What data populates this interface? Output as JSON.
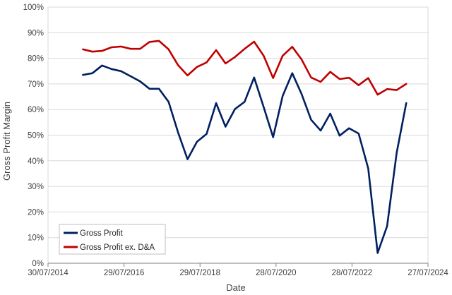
{
  "chart_data": {
    "type": "line",
    "title": "",
    "xlabel": "Date",
    "ylabel": "Gross Profit Margin",
    "xlim": [
      "2014-07-30",
      "2024-07-27"
    ],
    "ylim": [
      0,
      100
    ],
    "grid": "horizontal",
    "legend_position": "bottom-left",
    "x_tick_labels": [
      "30/07/2014",
      "29/07/2016",
      "29/07/2018",
      "28/07/2020",
      "28/07/2022",
      "27/07/2024"
    ],
    "y_tick_labels": [
      "0%",
      "10%",
      "20%",
      "30%",
      "40%",
      "50%",
      "60%",
      "70%",
      "80%",
      "90%",
      "100%"
    ],
    "x": [
      "2015-06-30",
      "2015-09-30",
      "2015-12-31",
      "2016-03-31",
      "2016-06-30",
      "2016-09-30",
      "2016-12-31",
      "2017-03-31",
      "2017-06-30",
      "2017-09-30",
      "2017-12-31",
      "2018-03-31",
      "2018-06-30",
      "2018-09-30",
      "2018-12-31",
      "2019-03-31",
      "2019-06-30",
      "2019-09-30",
      "2019-12-31",
      "2020-03-31",
      "2020-06-30",
      "2020-09-30",
      "2020-12-31",
      "2021-03-31",
      "2021-06-30",
      "2021-09-30",
      "2021-12-31",
      "2022-03-31",
      "2022-06-30",
      "2022-09-30",
      "2022-12-31",
      "2023-03-31",
      "2023-06-30",
      "2023-09-30",
      "2023-12-31"
    ],
    "series": [
      {
        "name": "Gross Profit",
        "color": "#002060",
        "values": [
          73.5,
          74.2,
          77.2,
          75.8,
          75,
          73,
          71,
          68.1,
          68.1,
          63,
          51,
          40.6,
          47.4,
          50.5,
          62.5,
          53.3,
          60.2,
          63,
          72.5,
          61,
          49.2,
          65.3,
          74.2,
          66,
          56,
          51.8,
          58.4,
          49.8,
          52.7,
          50.6,
          37,
          4,
          14.5,
          43,
          62.5
        ]
      },
      {
        "name": "Gross Profit ex. D&A",
        "color": "#c00000",
        "values": [
          83.5,
          82.6,
          82.9,
          84.3,
          84.6,
          83.7,
          83.7,
          86.4,
          86.8,
          83.5,
          77.3,
          73.3,
          76.6,
          78.4,
          83.2,
          78,
          80.5,
          83.7,
          86.5,
          81,
          72.3,
          81,
          84.5,
          79.5,
          72.5,
          70.8,
          74.7,
          71.9,
          72.4,
          69.5,
          72.3,
          65.8,
          68,
          67.6,
          70
        ]
      }
    ]
  }
}
